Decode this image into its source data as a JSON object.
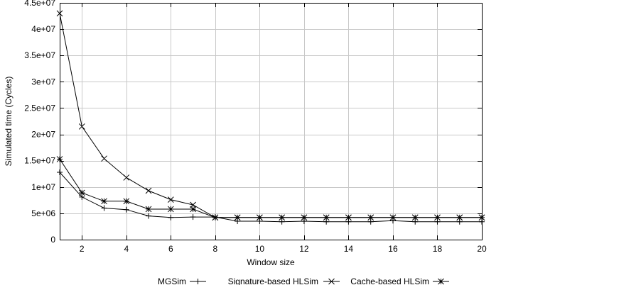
{
  "chart_data": {
    "type": "line",
    "title": "",
    "xlabel": "Window size",
    "ylabel": "Simulated time (Cycles)",
    "xlim": [
      1,
      20
    ],
    "ylim": [
      0,
      45000000
    ],
    "x_ticks": [
      2,
      4,
      6,
      8,
      10,
      12,
      14,
      16,
      18,
      20
    ],
    "x_tick_labels": [
      "2",
      "4",
      "6",
      "8",
      "10",
      "12",
      "14",
      "16",
      "18",
      "20"
    ],
    "y_ticks": [
      0,
      5000000,
      10000000,
      15000000,
      20000000,
      25000000,
      30000000,
      35000000,
      40000000,
      45000000
    ],
    "y_tick_labels": [
      "0",
      "5e+06",
      "1e+07",
      "1.5e+07",
      "2e+07",
      "2.5e+07",
      "3e+07",
      "3.5e+07",
      "4e+07",
      "4.5e+07"
    ],
    "grid": true,
    "legend_position": "bottom",
    "x": [
      1,
      2,
      3,
      4,
      5,
      6,
      7,
      8,
      9,
      10,
      11,
      12,
      13,
      14,
      15,
      16,
      17,
      18,
      19,
      20
    ],
    "series": [
      {
        "name": "MGSim",
        "marker": "plus",
        "color": "#000000",
        "values": [
          12800000,
          8100000,
          6000000,
          5700000,
          4500000,
          4200000,
          4300000,
          4300000,
          3500000,
          3500000,
          3400000,
          3500000,
          3400000,
          3400000,
          3400000,
          3600000,
          3400000,
          3400000,
          3400000,
          3400000
        ]
      },
      {
        "name": "Signature-based HLSim",
        "marker": "cross",
        "color": "#000000",
        "values": [
          43000000,
          21500000,
          15400000,
          11800000,
          9300000,
          7600000,
          6600000,
          4200000,
          4200000,
          4200000,
          4200000,
          4200000,
          4200000,
          4200000,
          4200000,
          4200000,
          4200000,
          4200000,
          4200000,
          4200000
        ]
      },
      {
        "name": "Cache-based HLSim",
        "marker": "star",
        "color": "#000000",
        "values": [
          15300000,
          8900000,
          7300000,
          7300000,
          5800000,
          5800000,
          5800000,
          4200000,
          4200000,
          4200000,
          4200000,
          4200000,
          4200000,
          4200000,
          4200000,
          4200000,
          4200000,
          4200000,
          4200000,
          4200000
        ]
      }
    ]
  }
}
